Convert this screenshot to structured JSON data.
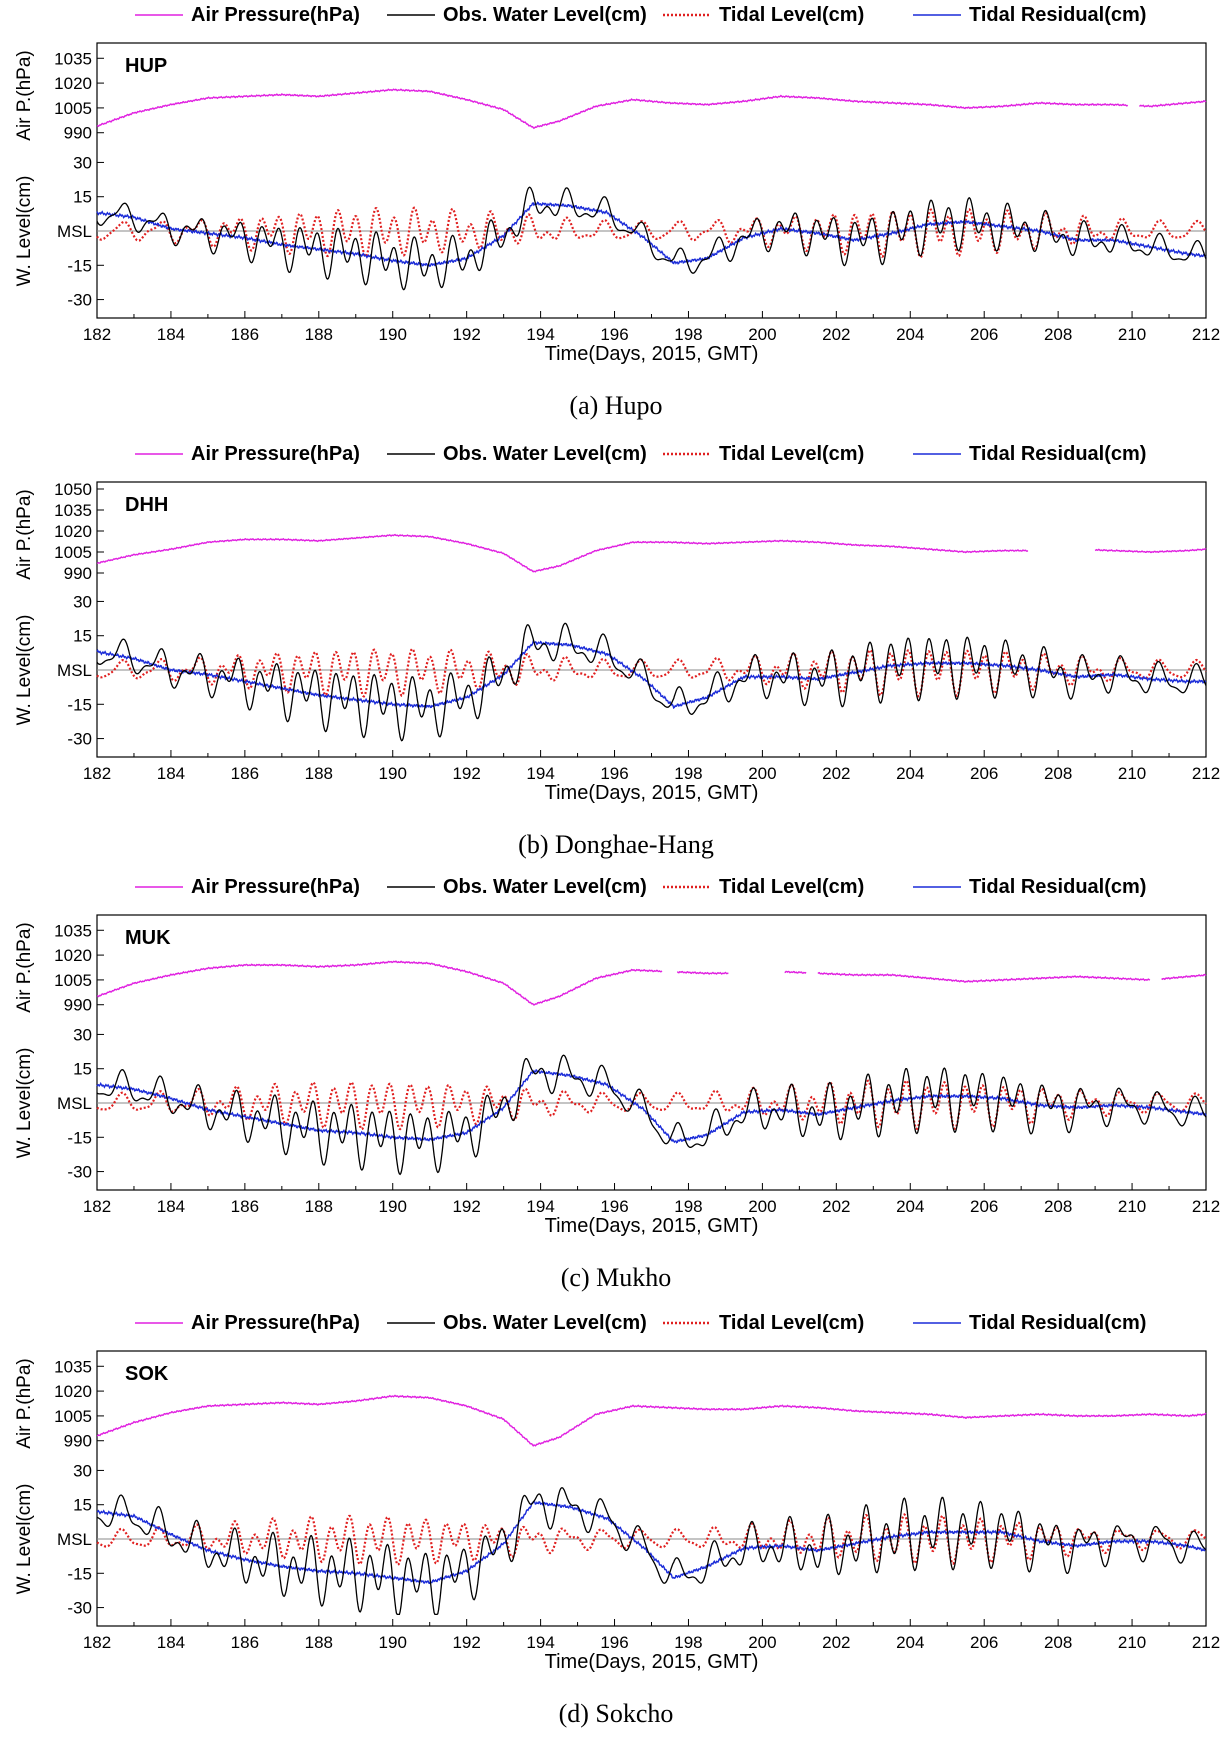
{
  "figure": {
    "legend": [
      {
        "label": "Air Pressure(hPa)",
        "color": "#e020e0",
        "style": "solid"
      },
      {
        "label": "Obs. Water Level(cm)",
        "color": "#000000",
        "style": "solid"
      },
      {
        "label": "Tidal Level(cm)",
        "color": "#e02020",
        "style": "dotted"
      },
      {
        "label": "Tidal Residual(cm)",
        "color": "#1a2bd8",
        "style": "solid"
      }
    ],
    "xlabel": "Time(Days, 2015, GMT)",
    "pressure_ylabel": "Air P.(hPa)",
    "level_ylabel": "W. Level(cm)",
    "x_ticks": [
      "182",
      "184",
      "186",
      "188",
      "190",
      "192",
      "194",
      "196",
      "198",
      "200",
      "202",
      "204",
      "206",
      "208",
      "210",
      "212"
    ],
    "level_ticks": [
      "30",
      "15",
      "MSL",
      "-15",
      "-30"
    ]
  },
  "chart_data": [
    {
      "type": "line",
      "station": "HUP",
      "caption": "(a) Hupo",
      "xlim": [
        182,
        212
      ],
      "pressure_ylim": [
        985,
        1040
      ],
      "pressure_ticks": [
        "1035",
        "1020",
        "1005",
        "990"
      ],
      "level_ylim": [
        -35,
        35
      ],
      "pressure_points": [
        [
          182,
          994
        ],
        [
          183,
          1002
        ],
        [
          184,
          1007
        ],
        [
          185,
          1011
        ],
        [
          186,
          1012
        ],
        [
          187,
          1013
        ],
        [
          188,
          1012
        ],
        [
          189,
          1014
        ],
        [
          190,
          1016
        ],
        [
          191,
          1015
        ],
        [
          192,
          1010
        ],
        [
          193,
          1004
        ],
        [
          193.8,
          993
        ],
        [
          194.5,
          997
        ],
        [
          195.5,
          1006
        ],
        [
          196.5,
          1010
        ],
        [
          197.5,
          1008
        ],
        [
          198.5,
          1007
        ],
        [
          199.5,
          1009
        ],
        [
          200.5,
          1012
        ],
        [
          201.5,
          1011
        ],
        [
          202.5,
          1009
        ],
        [
          203.5,
          1008
        ],
        [
          204.5,
          1007
        ],
        [
          205.5,
          1005
        ],
        [
          206.5,
          1006
        ],
        [
          207.5,
          1008
        ],
        [
          208.5,
          1007
        ],
        [
          209.5,
          1007
        ],
        [
          210.5,
          1006
        ],
        [
          211.5,
          1008
        ],
        [
          212,
          1009
        ]
      ],
      "pressure_gaps": [
        [
          209.9,
          210.2
        ]
      ],
      "residual_points": [
        [
          182,
          8
        ],
        [
          183,
          6
        ],
        [
          184,
          1
        ],
        [
          185,
          -1
        ],
        [
          186,
          -3
        ],
        [
          187,
          -6
        ],
        [
          188,
          -8
        ],
        [
          189,
          -10
        ],
        [
          190,
          -13
        ],
        [
          191,
          -15
        ],
        [
          192,
          -12
        ],
        [
          193,
          -2
        ],
        [
          193.8,
          12
        ],
        [
          194.8,
          11
        ],
        [
          195.8,
          8
        ],
        [
          196.8,
          -3
        ],
        [
          197.6,
          -14
        ],
        [
          198.5,
          -12
        ],
        [
          199.5,
          -3
        ],
        [
          200.5,
          1
        ],
        [
          201.5,
          -1
        ],
        [
          202.5,
          -4
        ],
        [
          203.5,
          -1
        ],
        [
          204.5,
          3
        ],
        [
          205.5,
          4
        ],
        [
          206.5,
          2
        ],
        [
          207.5,
          0
        ],
        [
          208.5,
          -4
        ],
        [
          209.5,
          -4
        ],
        [
          210.5,
          -7
        ],
        [
          211.5,
          -10
        ],
        [
          212,
          -11
        ]
      ],
      "obs_amplitude": 9,
      "tide_amplitude": 8
    },
    {
      "type": "line",
      "station": "DHH",
      "caption": "(b) Donghae-Hang",
      "xlim": [
        182,
        212
      ],
      "pressure_ylim": [
        985,
        1050
      ],
      "pressure_ticks": [
        "1050",
        "1035",
        "1020",
        "1005",
        "990"
      ],
      "level_ylim": [
        -35,
        35
      ],
      "pressure_points": [
        [
          182,
          997
        ],
        [
          183,
          1003
        ],
        [
          184,
          1007
        ],
        [
          185,
          1012
        ],
        [
          186,
          1014
        ],
        [
          187,
          1014
        ],
        [
          188,
          1013
        ],
        [
          189,
          1015
        ],
        [
          190,
          1017
        ],
        [
          191,
          1016
        ],
        [
          192,
          1011
        ],
        [
          193,
          1004
        ],
        [
          193.8,
          991
        ],
        [
          194.5,
          995
        ],
        [
          195.5,
          1006
        ],
        [
          196.5,
          1012
        ],
        [
          197.5,
          1012
        ],
        [
          198.5,
          1011
        ],
        [
          199.5,
          1012
        ],
        [
          200.5,
          1013
        ],
        [
          201.5,
          1012
        ],
        [
          202.5,
          1010
        ],
        [
          203.5,
          1009
        ],
        [
          204.5,
          1007
        ],
        [
          205.5,
          1005
        ],
        [
          206.5,
          1006
        ],
        [
          207.5,
          1006
        ],
        [
          208.5,
          1007
        ],
        [
          209.5,
          1006
        ],
        [
          210.5,
          1005
        ],
        [
          211.5,
          1006
        ],
        [
          212,
          1007
        ]
      ],
      "pressure_gaps": [
        [
          207.2,
          209.0
        ]
      ],
      "residual_points": [
        [
          182,
          8
        ],
        [
          183,
          5
        ],
        [
          184,
          0
        ],
        [
          185,
          -2
        ],
        [
          186,
          -5
        ],
        [
          187,
          -8
        ],
        [
          188,
          -11
        ],
        [
          189,
          -13
        ],
        [
          190,
          -15
        ],
        [
          191,
          -16
        ],
        [
          192,
          -12
        ],
        [
          193,
          -2
        ],
        [
          193.8,
          12
        ],
        [
          194.8,
          11
        ],
        [
          195.8,
          7
        ],
        [
          196.8,
          -4
        ],
        [
          197.6,
          -16
        ],
        [
          198.5,
          -12
        ],
        [
          199.5,
          -3
        ],
        [
          200.5,
          -3
        ],
        [
          201.5,
          -4
        ],
        [
          202.5,
          -1
        ],
        [
          203.5,
          2
        ],
        [
          204.5,
          3
        ],
        [
          205.5,
          3
        ],
        [
          206.5,
          2
        ],
        [
          207.5,
          0
        ],
        [
          208.5,
          -3
        ],
        [
          209.5,
          -2
        ],
        [
          210.5,
          -4
        ],
        [
          211.5,
          -5
        ],
        [
          212,
          -5
        ]
      ],
      "obs_amplitude": 11,
      "tide_amplitude": 8
    },
    {
      "type": "line",
      "station": "MUK",
      "caption": "(c) Mukho",
      "xlim": [
        182,
        212
      ],
      "pressure_ylim": [
        985,
        1040
      ],
      "pressure_ticks": [
        "1035",
        "1020",
        "1005",
        "990"
      ],
      "level_ylim": [
        -35,
        35
      ],
      "pressure_points": [
        [
          182,
          995
        ],
        [
          183,
          1003
        ],
        [
          184,
          1008
        ],
        [
          185,
          1012
        ],
        [
          186,
          1014
        ],
        [
          187,
          1014
        ],
        [
          188,
          1013
        ],
        [
          189,
          1014
        ],
        [
          190,
          1016
        ],
        [
          191,
          1015
        ],
        [
          192,
          1010
        ],
        [
          193,
          1003
        ],
        [
          193.8,
          990
        ],
        [
          194.5,
          995
        ],
        [
          195.5,
          1006
        ],
        [
          196.5,
          1011
        ],
        [
          197.5,
          1010
        ],
        [
          198.5,
          1009
        ],
        [
          199.5,
          1009
        ],
        [
          200.5,
          1010
        ],
        [
          201.5,
          1009
        ],
        [
          202.5,
          1008
        ],
        [
          203.5,
          1008
        ],
        [
          204.5,
          1006
        ],
        [
          205.5,
          1004
        ],
        [
          206.5,
          1005
        ],
        [
          207.5,
          1006
        ],
        [
          208.5,
          1007
        ],
        [
          209.5,
          1006
        ],
        [
          210.5,
          1005
        ],
        [
          211.5,
          1007
        ],
        [
          212,
          1008
        ]
      ],
      "pressure_gaps": [
        [
          197.3,
          197.7
        ],
        [
          199.1,
          200.6
        ],
        [
          201.2,
          201.5
        ],
        [
          210.5,
          210.8
        ]
      ],
      "residual_points": [
        [
          182,
          8
        ],
        [
          183,
          6
        ],
        [
          184,
          2
        ],
        [
          185,
          -3
        ],
        [
          186,
          -6
        ],
        [
          187,
          -9
        ],
        [
          188,
          -12
        ],
        [
          189,
          -13
        ],
        [
          190,
          -15
        ],
        [
          191,
          -16
        ],
        [
          192,
          -13
        ],
        [
          193,
          -2
        ],
        [
          193.8,
          14
        ],
        [
          194.8,
          12
        ],
        [
          195.8,
          8
        ],
        [
          196.8,
          -3
        ],
        [
          197.6,
          -17
        ],
        [
          198.5,
          -14
        ],
        [
          199.5,
          -4
        ],
        [
          200.5,
          -3
        ],
        [
          201.5,
          -5
        ],
        [
          202.5,
          -2
        ],
        [
          203.5,
          1
        ],
        [
          204.5,
          3
        ],
        [
          205.5,
          3
        ],
        [
          206.5,
          2
        ],
        [
          207.5,
          -1
        ],
        [
          208.5,
          -2
        ],
        [
          209.5,
          -1
        ],
        [
          210.5,
          -2
        ],
        [
          211.5,
          -4
        ],
        [
          212,
          -5
        ]
      ],
      "obs_amplitude": 11,
      "tide_amplitude": 8
    },
    {
      "type": "line",
      "station": "SOK",
      "caption": "(d) Sokcho",
      "xlim": [
        182,
        212
      ],
      "pressure_ylim": [
        985,
        1040
      ],
      "pressure_ticks": [
        "1035",
        "1020",
        "1005",
        "990"
      ],
      "level_ylim": [
        -35,
        35
      ],
      "pressure_points": [
        [
          182,
          993
        ],
        [
          183,
          1001
        ],
        [
          184,
          1007
        ],
        [
          185,
          1011
        ],
        [
          186,
          1012
        ],
        [
          187,
          1013
        ],
        [
          188,
          1012
        ],
        [
          189,
          1014
        ],
        [
          190,
          1017
        ],
        [
          191,
          1016
        ],
        [
          192,
          1011
        ],
        [
          193,
          1003
        ],
        [
          193.8,
          987
        ],
        [
          194.5,
          992
        ],
        [
          195.5,
          1006
        ],
        [
          196.5,
          1011
        ],
        [
          197.5,
          1010
        ],
        [
          198.5,
          1009
        ],
        [
          199.5,
          1009
        ],
        [
          200.5,
          1011
        ],
        [
          201.5,
          1010
        ],
        [
          202.5,
          1008
        ],
        [
          203.5,
          1007
        ],
        [
          204.5,
          1006
        ],
        [
          205.5,
          1004
        ],
        [
          206.5,
          1005
        ],
        [
          207.5,
          1006
        ],
        [
          208.5,
          1005
        ],
        [
          209.5,
          1005
        ],
        [
          210.5,
          1006
        ],
        [
          211.5,
          1005
        ],
        [
          212,
          1006
        ]
      ],
      "pressure_gaps": [],
      "residual_points": [
        [
          182,
          12
        ],
        [
          183,
          10
        ],
        [
          184,
          2
        ],
        [
          185,
          -5
        ],
        [
          186,
          -9
        ],
        [
          187,
          -12
        ],
        [
          188,
          -14
        ],
        [
          189,
          -15
        ],
        [
          190,
          -17
        ],
        [
          191,
          -19
        ],
        [
          192,
          -14
        ],
        [
          193,
          -2
        ],
        [
          193.8,
          16
        ],
        [
          194.8,
          14
        ],
        [
          195.8,
          9
        ],
        [
          196.8,
          -4
        ],
        [
          197.6,
          -17
        ],
        [
          198.5,
          -12
        ],
        [
          199.5,
          -4
        ],
        [
          200.5,
          -3
        ],
        [
          201.5,
          -5
        ],
        [
          202.5,
          -2
        ],
        [
          203.5,
          1
        ],
        [
          204.5,
          3
        ],
        [
          205.5,
          3
        ],
        [
          206.5,
          3
        ],
        [
          207.5,
          -1
        ],
        [
          208.5,
          -3
        ],
        [
          209.5,
          -1
        ],
        [
          210.5,
          -1
        ],
        [
          211.5,
          -3
        ],
        [
          212,
          -5
        ]
      ],
      "obs_amplitude": 12,
      "tide_amplitude": 8
    }
  ]
}
